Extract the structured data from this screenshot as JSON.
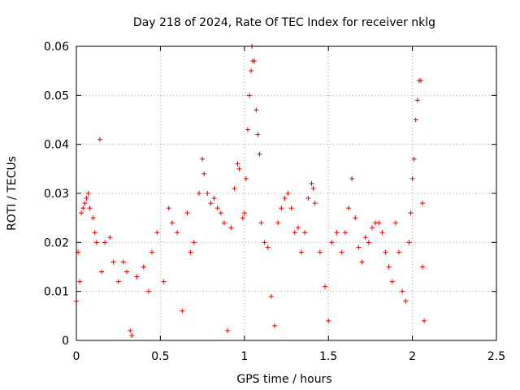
{
  "chart_data": {
    "type": "scatter",
    "title": "Day 218 of 2024, Rate Of TEC Index for receiver nklg",
    "xlabel": "GPS time / hours",
    "ylabel": "ROTI / TECUs",
    "xlim": [
      0,
      2.5
    ],
    "ylim": [
      0,
      0.06
    ],
    "xticks": [
      0,
      0.5,
      1,
      1.5,
      2,
      2.5
    ],
    "xtick_labels": [
      "0",
      "0.5",
      "1",
      "1.5",
      "2",
      "2.5"
    ],
    "yticks": [
      0,
      0.01,
      0.02,
      0.03,
      0.04,
      0.05,
      0.06
    ],
    "ytick_labels": [
      "0",
      "0.01",
      "0.02",
      "0.03",
      "0.04",
      "0.05",
      "0.06"
    ],
    "grid": true,
    "marker": "+",
    "color": "#e00000",
    "series": [
      {
        "name": "ROTI",
        "points": [
          [
            0.0,
            0.008
          ],
          [
            0.01,
            0.018
          ],
          [
            0.02,
            0.012
          ],
          [
            0.03,
            0.026
          ],
          [
            0.04,
            0.027
          ],
          [
            0.05,
            0.028
          ],
          [
            0.06,
            0.029
          ],
          [
            0.07,
            0.03
          ],
          [
            0.08,
            0.027
          ],
          [
            0.1,
            0.025
          ],
          [
            0.11,
            0.022
          ],
          [
            0.12,
            0.02
          ],
          [
            0.14,
            0.041
          ],
          [
            0.15,
            0.014
          ],
          [
            0.17,
            0.02
          ],
          [
            0.2,
            0.021
          ],
          [
            0.22,
            0.016
          ],
          [
            0.25,
            0.012
          ],
          [
            0.28,
            0.016
          ],
          [
            0.3,
            0.014
          ],
          [
            0.32,
            0.002
          ],
          [
            0.33,
            0.001
          ],
          [
            0.36,
            0.013
          ],
          [
            0.4,
            0.015
          ],
          [
            0.43,
            0.01
          ],
          [
            0.45,
            0.018
          ],
          [
            0.48,
            0.022
          ],
          [
            0.52,
            0.012
          ],
          [
            0.55,
            0.027
          ],
          [
            0.57,
            0.024
          ],
          [
            0.6,
            0.022
          ],
          [
            0.63,
            0.006
          ],
          [
            0.66,
            0.026
          ],
          [
            0.68,
            0.018
          ],
          [
            0.7,
            0.02
          ],
          [
            0.73,
            0.03
          ],
          [
            0.75,
            0.037
          ],
          [
            0.76,
            0.034
          ],
          [
            0.78,
            0.03
          ],
          [
            0.8,
            0.028
          ],
          [
            0.82,
            0.029
          ],
          [
            0.84,
            0.027
          ],
          [
            0.86,
            0.026
          ],
          [
            0.88,
            0.024
          ],
          [
            0.9,
            0.002
          ],
          [
            0.92,
            0.023
          ],
          [
            0.94,
            0.031
          ],
          [
            0.96,
            0.036
          ],
          [
            0.97,
            0.035
          ],
          [
            0.99,
            0.025
          ],
          [
            1.0,
            0.026
          ],
          [
            1.01,
            0.033
          ],
          [
            1.02,
            0.043
          ],
          [
            1.03,
            0.05
          ],
          [
            1.04,
            0.055
          ],
          [
            1.045,
            0.06
          ],
          [
            1.05,
            0.057
          ],
          [
            1.06,
            0.057
          ],
          [
            1.07,
            0.047
          ],
          [
            1.08,
            0.042
          ],
          [
            1.09,
            0.038
          ],
          [
            1.1,
            0.024
          ],
          [
            1.12,
            0.02
          ],
          [
            1.14,
            0.019
          ],
          [
            1.16,
            0.009
          ],
          [
            1.18,
            0.003
          ],
          [
            1.2,
            0.024
          ],
          [
            1.22,
            0.027
          ],
          [
            1.24,
            0.029
          ],
          [
            1.26,
            0.03
          ],
          [
            1.28,
            0.027
          ],
          [
            1.3,
            0.022
          ],
          [
            1.32,
            0.023
          ],
          [
            1.34,
            0.018
          ],
          [
            1.36,
            0.022
          ],
          [
            1.38,
            0.029
          ],
          [
            1.4,
            0.032
          ],
          [
            1.41,
            0.031
          ],
          [
            1.42,
            0.028
          ],
          [
            1.45,
            0.018
          ],
          [
            1.48,
            0.011
          ],
          [
            1.5,
            0.004
          ],
          [
            1.52,
            0.02
          ],
          [
            1.55,
            0.022
          ],
          [
            1.58,
            0.018
          ],
          [
            1.6,
            0.022
          ],
          [
            1.62,
            0.027
          ],
          [
            1.64,
            0.033
          ],
          [
            1.66,
            0.025
          ],
          [
            1.68,
            0.019
          ],
          [
            1.7,
            0.016
          ],
          [
            1.72,
            0.021
          ],
          [
            1.74,
            0.02
          ],
          [
            1.76,
            0.023
          ],
          [
            1.78,
            0.024
          ],
          [
            1.8,
            0.024
          ],
          [
            1.82,
            0.022
          ],
          [
            1.84,
            0.018
          ],
          [
            1.86,
            0.015
          ],
          [
            1.88,
            0.012
          ],
          [
            1.9,
            0.024
          ],
          [
            1.92,
            0.018
          ],
          [
            1.94,
            0.01
          ],
          [
            1.96,
            0.008
          ],
          [
            1.98,
            0.02
          ],
          [
            1.99,
            0.026
          ],
          [
            2.0,
            0.033
          ],
          [
            2.01,
            0.037
          ],
          [
            2.02,
            0.045
          ],
          [
            2.03,
            0.049
          ],
          [
            2.04,
            0.053
          ],
          [
            2.05,
            0.053
          ],
          [
            2.06,
            0.028
          ],
          [
            2.06,
            0.015
          ],
          [
            2.07,
            0.004
          ]
        ]
      }
    ]
  }
}
